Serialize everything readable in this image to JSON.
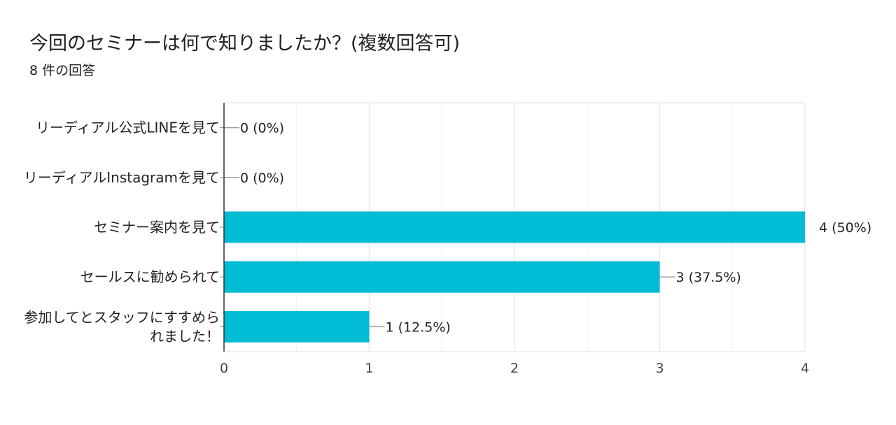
{
  "header": {
    "title": "今回のセミナーは何で知りましたか？(複数回答可)",
    "responses": "8 件の回答"
  },
  "colors": {
    "bar": "#00bcd4",
    "axis": "#333333",
    "grid": "#e6e6e6",
    "leader": "#9e9e9e"
  },
  "chart_data": {
    "type": "bar",
    "orientation": "horizontal",
    "categories": [
      [
        "リーディアル公式LINEを見て"
      ],
      [
        "リーディアルInstagramを見て"
      ],
      [
        "セミナー案内を見て"
      ],
      [
        "セールスに勧められて"
      ],
      [
        "参加してとスタッフにすすめら",
        "れました！"
      ]
    ],
    "values": [
      0,
      0,
      4,
      3,
      1
    ],
    "data_labels": [
      "0 (0%)",
      "0 (0%)",
      "4 (50%)",
      "3 (37.5%)",
      "1 (12.5%)"
    ],
    "xlim": [
      0,
      4
    ],
    "xticks": [
      0,
      1,
      2,
      3,
      4
    ],
    "grid": true,
    "title": "今回のセミナーは何で知りましたか？(複数回答可)",
    "xlabel": "",
    "ylabel": ""
  }
}
